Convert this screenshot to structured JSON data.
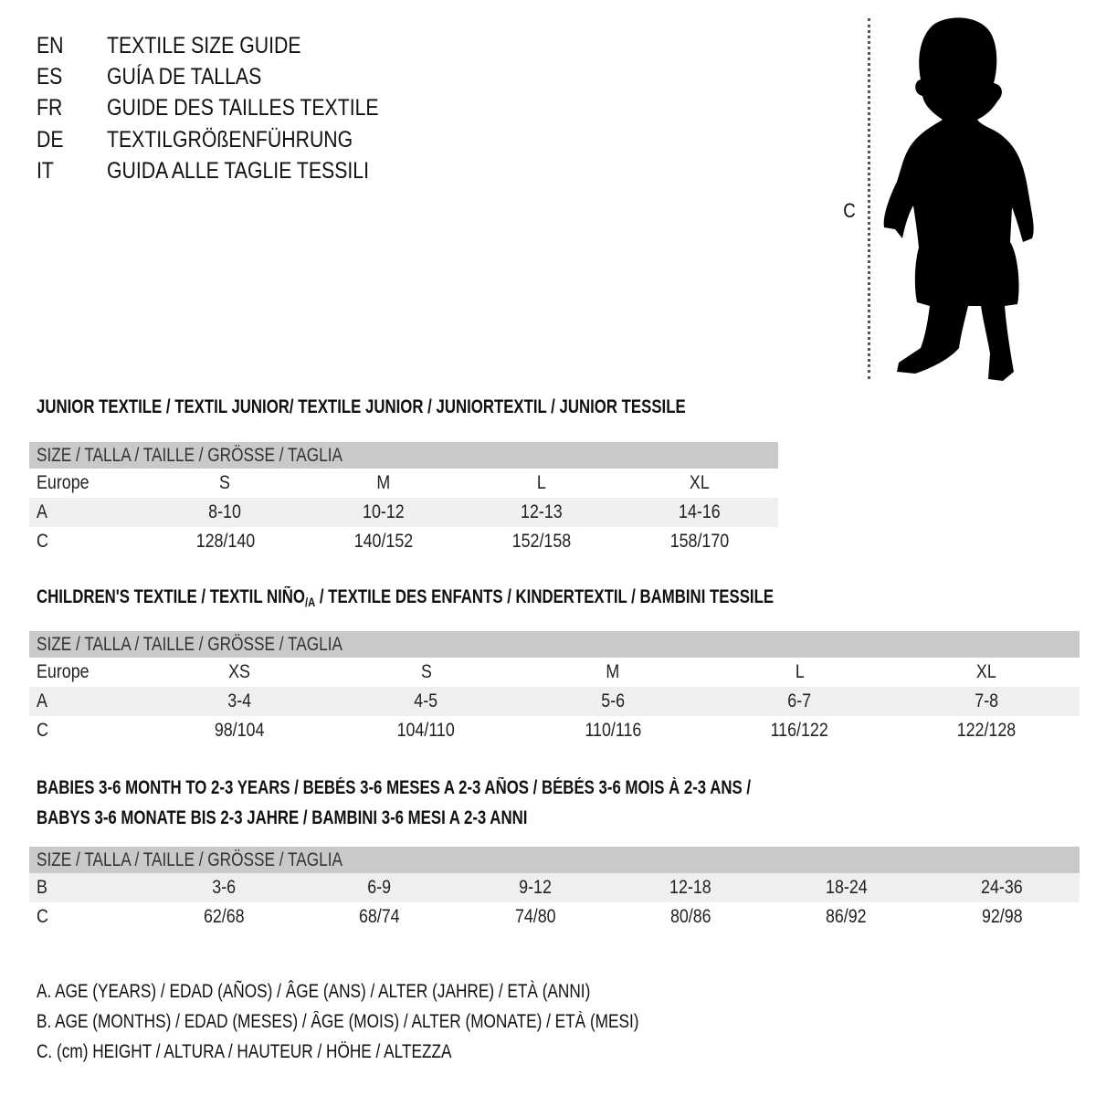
{
  "titles": [
    {
      "lang": "EN",
      "text": "TEXTILE SIZE GUIDE"
    },
    {
      "lang": "ES",
      "text": "GUÍA DE TALLAS"
    },
    {
      "lang": "FR",
      "text": "GUIDE DES TAILLES TEXTILE"
    },
    {
      "lang": "DE",
      "text": "TEXTILGRÖßENFÜHRUNG"
    },
    {
      "lang": "IT",
      "text": "GUIDA ALLE TAGLIE TESSILI"
    }
  ],
  "figure": {
    "measure_label": "C",
    "icon": "child-silhouette"
  },
  "junior": {
    "title": "JUNIOR TEXTILE / TEXTIL JUNIOR/ TEXTILE JUNIOR / JUNIORTEXTIL / JUNIOR TESSILE",
    "header": "SIZE / TALLA / TAILLE / GRÖSSE / TAGLIA",
    "rows": [
      {
        "label": "Europe",
        "values": [
          "S",
          "M",
          "L",
          "XL"
        ]
      },
      {
        "label": "A",
        "values": [
          "8-10",
          "10-12",
          "12-13",
          "14-16"
        ]
      },
      {
        "label": "C",
        "values": [
          "128/140",
          "140/152",
          "152/158",
          "158/170"
        ]
      }
    ]
  },
  "children": {
    "title_a": "CHILDREN'S TEXTILE / TEXTIL NIÑO",
    "title_sub": "/A",
    "title_b": " / TEXTILE DES ENFANTS / KINDERTEXTIL / BAMBINI TESSILE",
    "header": "SIZE / TALLA / TAILLE / GRÖSSE / TAGLIA",
    "rows": [
      {
        "label": "Europe",
        "values": [
          "XS",
          "S",
          "M",
          "L",
          "XL"
        ]
      },
      {
        "label": "A",
        "values": [
          "3-4",
          "4-5",
          "5-6",
          "6-7",
          "7-8"
        ]
      },
      {
        "label": "C",
        "values": [
          "98/104",
          "104/110",
          "110/116",
          "116/122",
          "122/128"
        ]
      }
    ]
  },
  "babies": {
    "title_line1": "BABIES 3-6 MONTH TO 2-3 YEARS / BEBÉS 3-6 MESES A 2-3 AÑOS / BÉBÉS 3-6 MOIS À 2-3 ANS /",
    "title_line2": "BABYS 3-6 MONATE BIS 2-3 JAHRE / BAMBINI 3-6 MESI A 2-3 ANNI",
    "header": "SIZE / TALLA / TAILLE / GRÖSSE / TAGLIA",
    "rows": [
      {
        "label": "B",
        "values": [
          "3-6",
          "6-9",
          "9-12",
          "12-18",
          "18-24",
          "24-36"
        ]
      },
      {
        "label": "C",
        "values": [
          "62/68",
          "68/74",
          "74/80",
          "80/86",
          "86/92",
          "92/98"
        ]
      }
    ]
  },
  "legend": [
    "A. AGE (YEARS) / EDAD (AÑOS) / ÂGE (ANS) / ALTER (JAHRE) / ETÀ (ANNI)",
    "B. AGE (MONTHS) / EDAD (MESES) / ÂGE (MOIS) / ALTER (MONATE) / ETÀ (MESI)",
    "C. (cm) HEIGHT / ALTURA / HAUTEUR / HÖHE / ALTEZZA"
  ]
}
